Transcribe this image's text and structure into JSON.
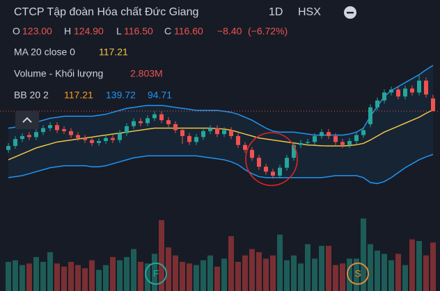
{
  "chart_data": {
    "type": "candlestick",
    "title": "CTCP Tập đoàn Hóa chất Đức Giang",
    "interval": "1D",
    "exchange": "HSX",
    "legend": {
      "open_label": "O",
      "open": {
        "value": 123,
        "label": "123.00"
      },
      "high_label": "H",
      "high": {
        "value": 124.9,
        "label": "124.90"
      },
      "low_label": "L",
      "low": {
        "value": 116.5,
        "label": "116.50"
      },
      "close_label": "C",
      "close": {
        "value": 116.6,
        "label": "116.60"
      },
      "change": {
        "value": -8.4,
        "label": "−8.40"
      },
      "change_pct": {
        "value": -6.72,
        "label": "(−6.72%)"
      }
    },
    "up_color": "#26a69a",
    "down_color": "#ef5350",
    "volume_up_color": "#1d5c57",
    "volume_down_color": "#7a2f33",
    "ylim": [
      80,
      140
    ],
    "vlim": [
      0,
      4500000
    ],
    "open": [
      97,
      99,
      102.5,
      104.5,
      103.5,
      106,
      108,
      109.5,
      107.5,
      106.5,
      104.5,
      103,
      102,
      100.5,
      101.5,
      103,
      102,
      105.5,
      109,
      111.5,
      110.5,
      113,
      115,
      112,
      110,
      107,
      104,
      101,
      103.5,
      106.5,
      108,
      105,
      107,
      104,
      99.5,
      97,
      93,
      88.5,
      86,
      84,
      88,
      93,
      99.5,
      100.5,
      101,
      104,
      106,
      104,
      101,
      99.5,
      101.5,
      104.5,
      110,
      118.5,
      122,
      126,
      127.5,
      124,
      128,
      126,
      132,
      123
    ],
    "high": [
      100.5,
      104,
      105.5,
      106,
      107.5,
      109.5,
      111,
      111,
      109,
      108,
      106,
      104.5,
      103.5,
      103,
      104.5,
      104.5,
      107,
      110.5,
      113,
      113,
      114.5,
      116.5,
      116.5,
      113.5,
      111.5,
      108.5,
      105.5,
      105,
      108,
      109.5,
      109.5,
      108.5,
      108.5,
      105.5,
      101,
      98.5,
      94.5,
      90,
      87.5,
      89.5,
      94.5,
      101,
      102,
      102.5,
      105.5,
      107.5,
      107.5,
      105.5,
      102.5,
      103,
      106,
      108.5,
      120,
      123.5,
      127.5,
      129,
      129,
      129.5,
      129.5,
      135,
      133.5,
      124.9
    ],
    "low": [
      95.5,
      97.5,
      101,
      102,
      102,
      104.5,
      106.5,
      105.5,
      105,
      103,
      101.5,
      100.5,
      99,
      99,
      100,
      100.5,
      100.5,
      104,
      107.5,
      109,
      109,
      111.5,
      110.5,
      108.5,
      105.5,
      100,
      99.5,
      99.5,
      102,
      105,
      103.5,
      103.5,
      102.5,
      98,
      95.5,
      91.5,
      87,
      84.5,
      82.5,
      82.5,
      86.5,
      91.5,
      98,
      99,
      99.5,
      102.5,
      102.5,
      99.5,
      98,
      98,
      100,
      103,
      108.5,
      117,
      120.5,
      124.5,
      122.5,
      122.5,
      124.5,
      124.5,
      123.5,
      116.5
    ],
    "close": [
      99,
      102.5,
      104,
      103.5,
      106,
      108,
      109.5,
      107,
      106.5,
      104.5,
      103,
      102,
      100.5,
      101.5,
      103,
      102,
      105.5,
      109,
      111.5,
      110.5,
      113,
      115,
      112,
      110,
      107,
      104,
      101,
      103.5,
      106.5,
      108,
      105,
      107,
      104,
      99.5,
      97,
      93,
      88.5,
      86,
      84,
      88,
      93,
      99.5,
      100.5,
      101,
      104,
      106,
      104,
      101,
      99.5,
      101.5,
      104.5,
      107,
      118.5,
      122,
      126,
      127.5,
      124,
      128,
      126,
      132,
      125,
      116.6
    ],
    "volume": {
      "label": "Volume - Khối lượng",
      "value": 2803000,
      "value_label": "2.803M",
      "values": [
        1600000,
        1700000,
        1400000,
        1500000,
        1900000,
        1600000,
        2200000,
        1500000,
        1300000,
        1600000,
        1400000,
        1200000,
        1700000,
        1100000,
        1400000,
        1900000,
        1700000,
        1900000,
        2400000,
        1600000,
        1500000,
        2100000,
        4200000,
        2500000,
        2000000,
        1600000,
        1500000,
        1400000,
        1700000,
        2000000,
        1300000,
        1800000,
        3200000,
        1600000,
        2000000,
        2400000,
        2200000,
        1800000,
        2000000,
        3300000,
        1700000,
        2000000,
        1500000,
        2700000,
        1800000,
        2600000,
        2600000,
        1400000,
        1500000,
        1800000,
        1800000,
        4300000,
        2700000,
        2300000,
        2100000,
        1700000,
        2100000,
        1400000,
        3000000,
        2900000,
        2000000,
        2803000
      ]
    },
    "ma": {
      "label": "MA 20 close 0",
      "value": 117.21,
      "color": "#f5c543",
      "values": [
        92,
        93.5,
        95,
        96.5,
        98,
        99,
        100,
        101,
        101.5,
        102,
        102.5,
        103,
        103.5,
        104,
        104.5,
        105,
        105.5,
        106,
        106.5,
        107,
        107.5,
        108,
        108,
        108,
        108,
        108,
        108,
        108,
        108,
        108,
        107.8,
        107.5,
        107,
        106,
        105,
        104,
        103,
        102.5,
        102,
        101.5,
        101,
        100.5,
        100,
        99.5,
        99.3,
        99.1,
        99,
        99,
        99,
        99.2,
        99.6,
        100.3,
        102,
        104,
        106,
        107.5,
        109,
        110.5,
        112,
        113.5,
        115.5,
        117.21
      ]
    },
    "bb": {
      "label": "BB 20 2",
      "basis": 117.21,
      "basis_color": "#ff9f1c",
      "upper": 139.72,
      "lower": 94.71,
      "color": "#2196f3",
      "upper_values": [
        108,
        108.5,
        109,
        110,
        111,
        112,
        113,
        113.5,
        114,
        114,
        114,
        114,
        114,
        114.5,
        115,
        116,
        117,
        118,
        118.5,
        119,
        119.5,
        119.5,
        119.5,
        119,
        118.5,
        118,
        117.5,
        117,
        117,
        117,
        117,
        116.5,
        116,
        115,
        113.5,
        112,
        110,
        108,
        106.5,
        106,
        106,
        106,
        105.5,
        105,
        104.5,
        104.5,
        104.5,
        104.5,
        104.5,
        105,
        106,
        108,
        114,
        119,
        124,
        127,
        129,
        131,
        133,
        135,
        137.5,
        139.72
      ],
      "lower_values": [
        83,
        83.5,
        84,
        85,
        86,
        87,
        88,
        88.5,
        89,
        89,
        89,
        89,
        88.5,
        88.5,
        89,
        90,
        91,
        92,
        93,
        93.5,
        94,
        94,
        94,
        94,
        94,
        94,
        94,
        94,
        93.5,
        93,
        92.5,
        92,
        91,
        89.5,
        87,
        85,
        83.5,
        83,
        83,
        83,
        83,
        83,
        83,
        83,
        83,
        83,
        83.5,
        84,
        84,
        84,
        84,
        83,
        80.5,
        80,
        81,
        83,
        85.5,
        88,
        90,
        92,
        93.5,
        94.71
      ]
    },
    "markers": [
      {
        "label": "F",
        "color": "#26a69a"
      },
      {
        "label": "S",
        "color": "#e08a3c"
      }
    ]
  }
}
